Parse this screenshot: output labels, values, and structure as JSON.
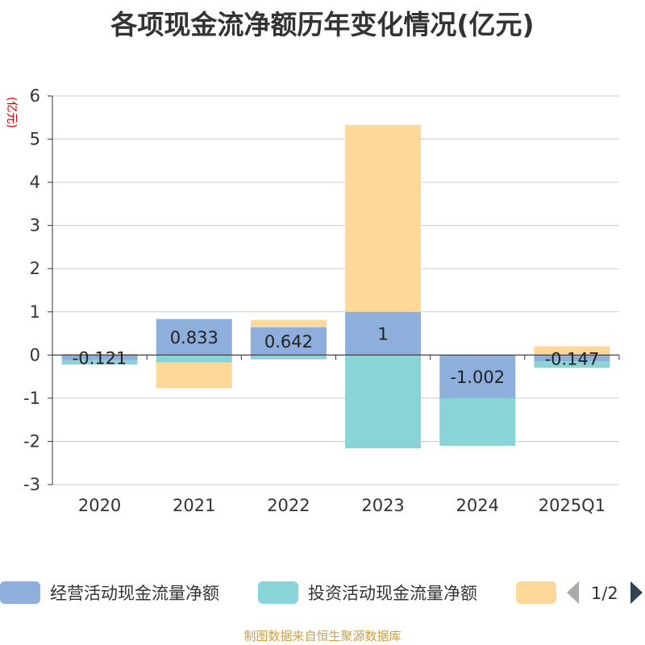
{
  "title": "各项现金流净额历年变化情况(亿元)",
  "source": "制图数据来自恒生聚源数据库",
  "legend_page": "1/2",
  "chart_data": {
    "type": "bar",
    "stacked": true,
    "ylabel": "(亿元)",
    "ylim": [
      -3,
      6
    ],
    "yticks": [
      -3,
      -2,
      -1,
      0,
      1,
      2,
      3,
      4,
      5,
      6
    ],
    "grid": true,
    "legend_position": "bottom",
    "categories": [
      "2020",
      "2021",
      "2022",
      "2023",
      "2024",
      "2025Q1"
    ],
    "series": [
      {
        "name": "经营活动现金流量净额",
        "color": "#8eaedb",
        "values": [
          -0.121,
          0.833,
          0.642,
          1,
          -1.002,
          -0.147
        ],
        "labels": [
          "-0.121",
          "0.833",
          "0.642",
          "1",
          "-1.002",
          "-0.147"
        ]
      },
      {
        "name": "投资活动现金流量净额",
        "color": "#88d4d6",
        "values": [
          -0.1,
          -0.17,
          -0.1,
          -2.16,
          -1.1,
          -0.15
        ]
      },
      {
        "name": "",
        "color": "#fdd898",
        "values": [
          0.03,
          -0.6,
          0.17,
          4.33,
          0,
          0.2
        ]
      }
    ]
  }
}
